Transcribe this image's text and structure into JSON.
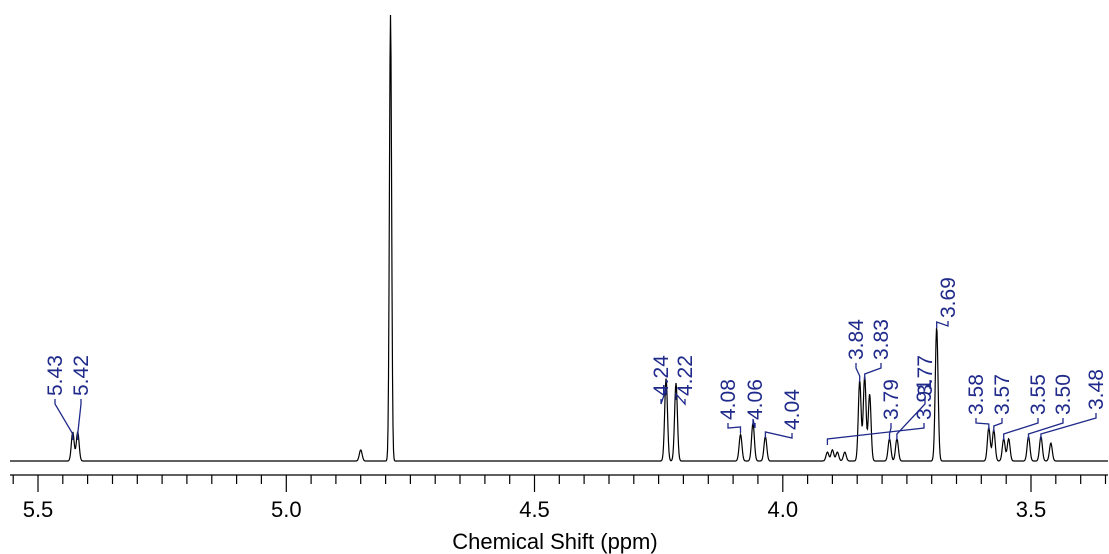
{
  "chart_data": {
    "type": "line",
    "title": "",
    "xlabel": "Chemical Shift (ppm)",
    "ylabel": "",
    "x_reversed": true,
    "xlim": [
      5.36,
      5.57
    ],
    "major_ticks": [
      5.5,
      5.0,
      4.5,
      4.0,
      3.5
    ],
    "tick_labels": [
      "5.5",
      "5.0",
      "4.5",
      "4.0",
      "3.5"
    ],
    "minor_tick_step": 0.05,
    "grid": false,
    "colors": {
      "spectrum": "#000000",
      "labels": "#1f2a8a"
    },
    "peak_labels": [
      "5.43",
      "5.42",
      "4.24",
      "4.22",
      "4.08",
      "4.06",
      "4.04",
      "3.91",
      "3.84",
      "3.83",
      "3.79",
      "3.77",
      "3.69",
      "3.58",
      "3.57",
      "3.55",
      "3.50",
      "3.48"
    ],
    "peaks": [
      {
        "x": 5.43,
        "height": 0.065
      },
      {
        "x": 5.42,
        "height": 0.065
      },
      {
        "x": 4.85,
        "height": 0.025
      },
      {
        "x": 4.79,
        "height": 1.0
      },
      {
        "x": 4.235,
        "height": 0.185
      },
      {
        "x": 4.215,
        "height": 0.175
      },
      {
        "x": 4.085,
        "height": 0.06
      },
      {
        "x": 4.06,
        "height": 0.085
      },
      {
        "x": 4.035,
        "height": 0.055
      },
      {
        "x": 3.91,
        "height": 0.02
      },
      {
        "x": 3.9,
        "height": 0.025
      },
      {
        "x": 3.89,
        "height": 0.02
      },
      {
        "x": 3.875,
        "height": 0.02
      },
      {
        "x": 3.845,
        "height": 0.18
      },
      {
        "x": 3.835,
        "height": 0.19
      },
      {
        "x": 3.825,
        "height": 0.15
      },
      {
        "x": 3.785,
        "height": 0.05
      },
      {
        "x": 3.77,
        "height": 0.05
      },
      {
        "x": 3.69,
        "height": 0.3
      },
      {
        "x": 3.585,
        "height": 0.075
      },
      {
        "x": 3.575,
        "height": 0.07
      },
      {
        "x": 3.555,
        "height": 0.05
      },
      {
        "x": 3.545,
        "height": 0.05
      },
      {
        "x": 3.505,
        "height": 0.055
      },
      {
        "x": 3.48,
        "height": 0.055
      },
      {
        "x": 3.46,
        "height": 0.04
      }
    ]
  }
}
